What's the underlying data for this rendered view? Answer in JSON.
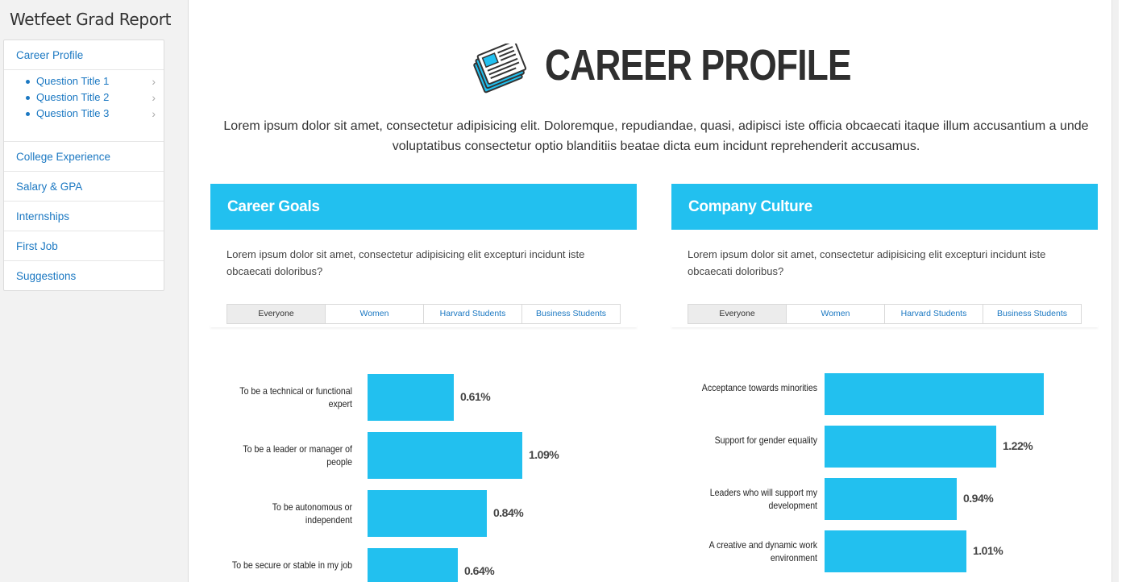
{
  "app": {
    "title": "Wetfeet Grad Report"
  },
  "sidebar": {
    "items": [
      {
        "label": "Career Profile"
      },
      {
        "label": "College Experience"
      },
      {
        "label": "Salary & GPA"
      },
      {
        "label": "Internships"
      },
      {
        "label": "First Job"
      },
      {
        "label": "Suggestions"
      }
    ],
    "sub_items": [
      {
        "label": "Question Title 1"
      },
      {
        "label": "Question Title 2"
      },
      {
        "label": "Question Title 3"
      }
    ],
    "chevron_icon": "chevron-right-icon"
  },
  "page": {
    "title": "CAREER PROFILE",
    "icon": "newspaper-icon",
    "intro": "Lorem ipsum dolor sit amet, consectetur adipisicing elit. Doloremque, repudiandae, quasi, adipisci iste officia obcaecati itaque illum accusantium a unde voluptatibus consectetur optio blanditiis beatae dicta eum incidunt reprehenderit accusamus."
  },
  "colors": {
    "accent": "#22c0ef",
    "link": "#1b78c2",
    "title": "#2f2f2f"
  },
  "panels": [
    {
      "title": "Career Goals",
      "description": "Lorem ipsum dolor sit amet, consectetur adipisicing elit excepturi incidunt iste obcaecati doloribus?",
      "tabs": [
        "Everyone",
        "Women",
        "Harvard Students",
        "Business Students"
      ],
      "active_tab": "Everyone",
      "chart_data": {
        "type": "bar",
        "orientation": "horizontal",
        "categories": [
          "To be a technical or functional expert",
          "To be a leader or manager of people",
          "To be autonomous or independent",
          "To be secure or stable in my job"
        ],
        "values": [
          0.61,
          1.09,
          0.84,
          0.64
        ],
        "value_labels": [
          "0.61%",
          "1.09%",
          "0.84%",
          "0.64%"
        ],
        "value_scale_max": 1.4
      }
    },
    {
      "title": "Company Culture",
      "description": "Lorem ipsum dolor sit amet, consectetur adipisicing elit excepturi incidunt iste obcaecati doloribus?",
      "tabs": [
        "Everyone",
        "Women",
        "Harvard Students",
        "Business Students"
      ],
      "active_tab": "Everyone",
      "chart_data": {
        "type": "bar",
        "orientation": "horizontal",
        "categories": [
          "Acceptance towards minorities",
          "Support for gender equality",
          "Leaders who will support my development",
          "A creative and dynamic work environment"
        ],
        "values": [
          1.56,
          1.22,
          0.94,
          1.01
        ],
        "value_labels": [
          "",
          "1.22%",
          "0.94%",
          "1.01%"
        ],
        "value_scale_max": 1.56
      }
    }
  ]
}
